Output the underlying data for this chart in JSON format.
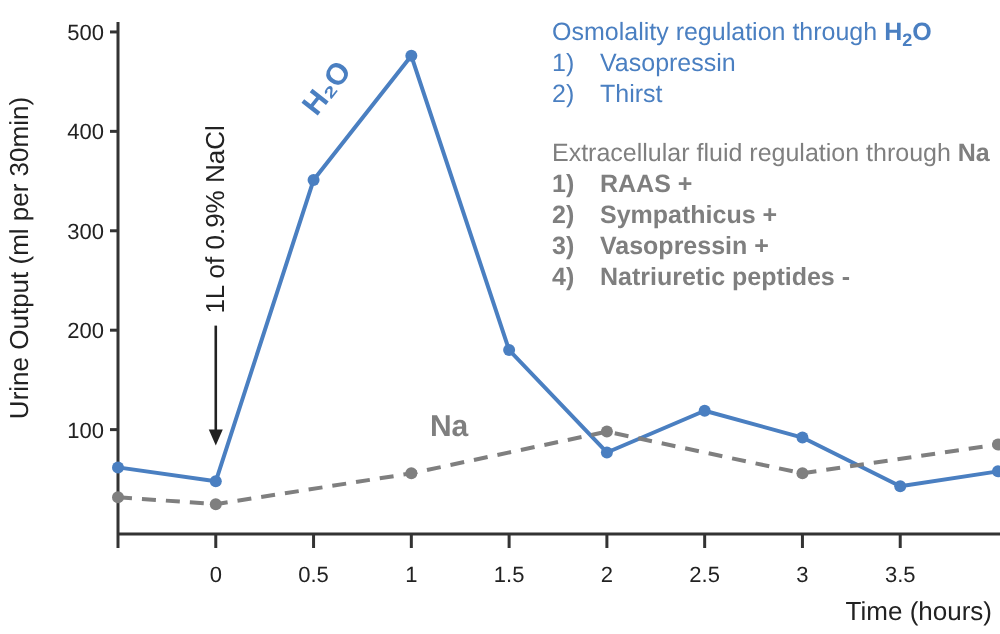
{
  "chart_data": {
    "type": "line",
    "xlabel": "Time (hours)",
    "ylabel": "Urine Output (ml per 30min)",
    "x": [
      -0.5,
      0,
      0.5,
      1,
      1.5,
      2,
      2.5,
      3,
      3.5,
      4
    ],
    "xlim": [
      -0.5,
      4
    ],
    "xticks": [
      {
        "value": -0.5,
        "label": null
      },
      0,
      0.5,
      1,
      1.5,
      2,
      2.5,
      3,
      3.5
    ],
    "ylim": [
      -5,
      510
    ],
    "yticks": [
      100,
      200,
      300,
      400,
      500
    ],
    "series": [
      {
        "name": "H₂O",
        "color": "#4a7fc1",
        "values": [
          62,
          48,
          351,
          476,
          180,
          77,
          119,
          92,
          43,
          58
        ],
        "line_style": "solid"
      },
      {
        "name": "Na",
        "color": "#7f7f7f",
        "x": [
          -0.5,
          0,
          1,
          2,
          3,
          4
        ],
        "values": [
          32,
          25,
          56,
          98,
          56,
          85
        ],
        "line_style": "dashed"
      }
    ],
    "marker": "circle",
    "grid": false,
    "annotations": [
      "1L of 0.9% NaCl",
      "Osmolality regulation through H$_{2}$O",
      "1)    Vasopressin",
      "2)    Thirst",
      "Extracellular fluid regulation through Na",
      "1)    RAAS +",
      "2)    Sympathicus +",
      "3)    Vasopressin +",
      "4)    Natriuretic peptides -"
    ]
  }
}
